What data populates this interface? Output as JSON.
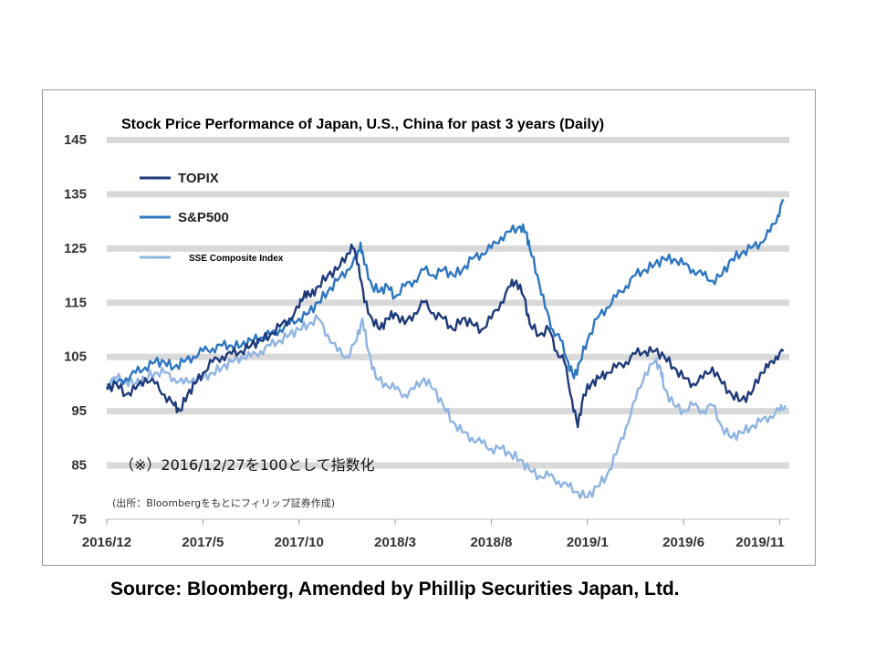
{
  "source_text": "Source: Bloomberg, Amended by Phillip Securities Japan, Ltd.",
  "chart_data": {
    "type": "line",
    "title": "Stock Price Performance of Japan, U.S., China for past 3 years (Daily)",
    "annotation_main": "（※）2016/12/27を100として指数化",
    "annotation_source": "(出所：Bloombergをもとにフィリップ証券作成)",
    "ylim": [
      75,
      145
    ],
    "y_ticks": [
      145,
      135,
      125,
      115,
      105,
      95,
      85,
      75
    ],
    "x_ticks": [
      "2016/12",
      "2017/5",
      "2017/10",
      "2018/3",
      "2018/8",
      "2019/1",
      "2019/6",
      "2019/11"
    ],
    "xlim": [
      0,
      35.5
    ],
    "grid": "horizontal bands",
    "legend_position": "top-left",
    "series": [
      {
        "name": "TOPIX",
        "color": "#1f3a7a",
        "points": [
          [
            0,
            99
          ],
          [
            0.5,
            100
          ],
          [
            1,
            98
          ],
          [
            1.5,
            99
          ],
          [
            2,
            101
          ],
          [
            2.5,
            100
          ],
          [
            3,
            98
          ],
          [
            3.5,
            96
          ],
          [
            3.8,
            95
          ],
          [
            4.2,
            98
          ],
          [
            4.6,
            100
          ],
          [
            5,
            102
          ],
          [
            5.5,
            104
          ],
          [
            6,
            105
          ],
          [
            6.5,
            105.5
          ],
          [
            7,
            106
          ],
          [
            7.5,
            107
          ],
          [
            8,
            108
          ],
          [
            8.5,
            109
          ],
          [
            9,
            110.5
          ],
          [
            9.5,
            112
          ],
          [
            10,
            114
          ],
          [
            10.3,
            117
          ],
          [
            10.6,
            116
          ],
          [
            11,
            118
          ],
          [
            11.5,
            120
          ],
          [
            12,
            121
          ],
          [
            12.5,
            124
          ],
          [
            12.8,
            125
          ],
          [
            13.1,
            122
          ],
          [
            13.4,
            115
          ],
          [
            13.8,
            112
          ],
          [
            14.2,
            110
          ],
          [
            14.6,
            112
          ],
          [
            15,
            113
          ],
          [
            15.5,
            111
          ],
          [
            16,
            113
          ],
          [
            16.5,
            115
          ],
          [
            17,
            113
          ],
          [
            17.5,
            112
          ],
          [
            18,
            110
          ],
          [
            18.5,
            112
          ],
          [
            19,
            111
          ],
          [
            19.5,
            110
          ],
          [
            20,
            112
          ],
          [
            20.5,
            115
          ],
          [
            21,
            118
          ],
          [
            21.3,
            119
          ],
          [
            21.7,
            116
          ],
          [
            22,
            111
          ],
          [
            22.5,
            109
          ],
          [
            23,
            110
          ],
          [
            23.4,
            106
          ],
          [
            23.8,
            104
          ],
          [
            24.2,
            97
          ],
          [
            24.5,
            92
          ],
          [
            24.8,
            98
          ],
          [
            25.2,
            100
          ],
          [
            25.6,
            101
          ],
          [
            26,
            102
          ],
          [
            26.5,
            103
          ],
          [
            27,
            104
          ],
          [
            27.5,
            105.5
          ],
          [
            28,
            106
          ],
          [
            28.5,
            106
          ],
          [
            29,
            105
          ],
          [
            29.5,
            103
          ],
          [
            30,
            101
          ],
          [
            30.5,
            100
          ],
          [
            31,
            101
          ],
          [
            31.5,
            103
          ],
          [
            32,
            100
          ],
          [
            32.5,
            98
          ],
          [
            33,
            97
          ],
          [
            33.5,
            98
          ],
          [
            34,
            102
          ],
          [
            34.4,
            103
          ],
          [
            34.8,
            105
          ],
          [
            35.2,
            106
          ]
        ]
      },
      {
        "name": "S&P500",
        "color": "#2d76c2",
        "points": [
          [
            0,
            99
          ],
          [
            0.5,
            100
          ],
          [
            1,
            101
          ],
          [
            1.5,
            102
          ],
          [
            2,
            103
          ],
          [
            2.5,
            104
          ],
          [
            3,
            104
          ],
          [
            3.5,
            103
          ],
          [
            4,
            104
          ],
          [
            4.5,
            105
          ],
          [
            5,
            106
          ],
          [
            5.5,
            106.5
          ],
          [
            6,
            107
          ],
          [
            6.5,
            107
          ],
          [
            7,
            107
          ],
          [
            7.5,
            108
          ],
          [
            8,
            108.5
          ],
          [
            8.5,
            109
          ],
          [
            9,
            110
          ],
          [
            9.5,
            111
          ],
          [
            10,
            112
          ],
          [
            10.5,
            113
          ],
          [
            11,
            115
          ],
          [
            11.5,
            117
          ],
          [
            12,
            119
          ],
          [
            12.5,
            121
          ],
          [
            13,
            123
          ],
          [
            13.2,
            126
          ],
          [
            13.4,
            122
          ],
          [
            13.8,
            118
          ],
          [
            14.2,
            117
          ],
          [
            14.6,
            118
          ],
          [
            15,
            116
          ],
          [
            15.5,
            118
          ],
          [
            16,
            119
          ],
          [
            16.5,
            121
          ],
          [
            17,
            120
          ],
          [
            17.5,
            121
          ],
          [
            18,
            120
          ],
          [
            18.5,
            121
          ],
          [
            19,
            123
          ],
          [
            19.5,
            124
          ],
          [
            20,
            125
          ],
          [
            20.5,
            127
          ],
          [
            21,
            128
          ],
          [
            21.5,
            129
          ],
          [
            21.8,
            128
          ],
          [
            22,
            125
          ],
          [
            22.4,
            120
          ],
          [
            22.8,
            114
          ],
          [
            23.2,
            110
          ],
          [
            23.6,
            108
          ],
          [
            24,
            104
          ],
          [
            24.3,
            101
          ],
          [
            24.6,
            104
          ],
          [
            25,
            108
          ],
          [
            25.5,
            112
          ],
          [
            26,
            114
          ],
          [
            26.5,
            116
          ],
          [
            27,
            118
          ],
          [
            27.5,
            120
          ],
          [
            28,
            121
          ],
          [
            28.5,
            122
          ],
          [
            29,
            123
          ],
          [
            29.5,
            123
          ],
          [
            30,
            122
          ],
          [
            30.5,
            121
          ],
          [
            31,
            120
          ],
          [
            31.5,
            119
          ],
          [
            32,
            120
          ],
          [
            32.5,
            123
          ],
          [
            33,
            124
          ],
          [
            33.5,
            125
          ],
          [
            34,
            126
          ],
          [
            34.5,
            128
          ],
          [
            34.9,
            131
          ],
          [
            35.2,
            134
          ]
        ]
      },
      {
        "name": "SSE Composite Index",
        "color": "#8fb4e3",
        "points": [
          [
            0,
            100
          ],
          [
            0.5,
            101
          ],
          [
            1,
            100.5
          ],
          [
            1.5,
            100
          ],
          [
            2,
            101
          ],
          [
            2.5,
            102
          ],
          [
            3,
            102
          ],
          [
            3.5,
            101
          ],
          [
            4,
            100
          ],
          [
            4.5,
            101
          ],
          [
            5,
            101
          ],
          [
            5.5,
            102
          ],
          [
            6,
            103
          ],
          [
            6.5,
            104
          ],
          [
            7,
            105
          ],
          [
            7.5,
            105
          ],
          [
            8,
            106
          ],
          [
            8.5,
            107
          ],
          [
            9,
            108
          ],
          [
            9.5,
            109
          ],
          [
            10,
            110
          ],
          [
            10.5,
            111
          ],
          [
            11,
            112
          ],
          [
            11.5,
            109
          ],
          [
            12,
            106
          ],
          [
            12.5,
            105
          ],
          [
            13,
            108
          ],
          [
            13.3,
            112
          ],
          [
            13.6,
            106
          ],
          [
            14,
            101
          ],
          [
            14.5,
            100
          ],
          [
            15,
            99
          ],
          [
            15.5,
            98
          ],
          [
            16,
            99
          ],
          [
            16.5,
            101
          ],
          [
            17,
            99
          ],
          [
            17.5,
            96
          ],
          [
            18,
            93
          ],
          [
            18.5,
            91
          ],
          [
            19,
            90
          ],
          [
            19.5,
            89
          ],
          [
            20,
            88
          ],
          [
            20.5,
            88
          ],
          [
            21,
            87
          ],
          [
            21.5,
            86
          ],
          [
            22,
            84
          ],
          [
            22.5,
            83
          ],
          [
            23,
            83
          ],
          [
            23.5,
            82
          ],
          [
            24,
            81
          ],
          [
            24.5,
            80
          ],
          [
            25,
            79
          ],
          [
            25.5,
            81
          ],
          [
            26,
            83
          ],
          [
            26.5,
            87
          ],
          [
            27,
            92
          ],
          [
            27.5,
            97
          ],
          [
            28,
            102
          ],
          [
            28.5,
            104
          ],
          [
            28.8,
            103
          ],
          [
            29,
            99
          ],
          [
            29.5,
            96
          ],
          [
            30,
            95
          ],
          [
            30.5,
            96
          ],
          [
            31,
            95
          ],
          [
            31.5,
            96
          ],
          [
            32,
            92
          ],
          [
            32.5,
            90
          ],
          [
            33,
            91
          ],
          [
            33.5,
            92
          ],
          [
            34,
            93
          ],
          [
            34.5,
            94
          ],
          [
            35,
            95
          ],
          [
            35.3,
            96
          ]
        ]
      }
    ]
  }
}
